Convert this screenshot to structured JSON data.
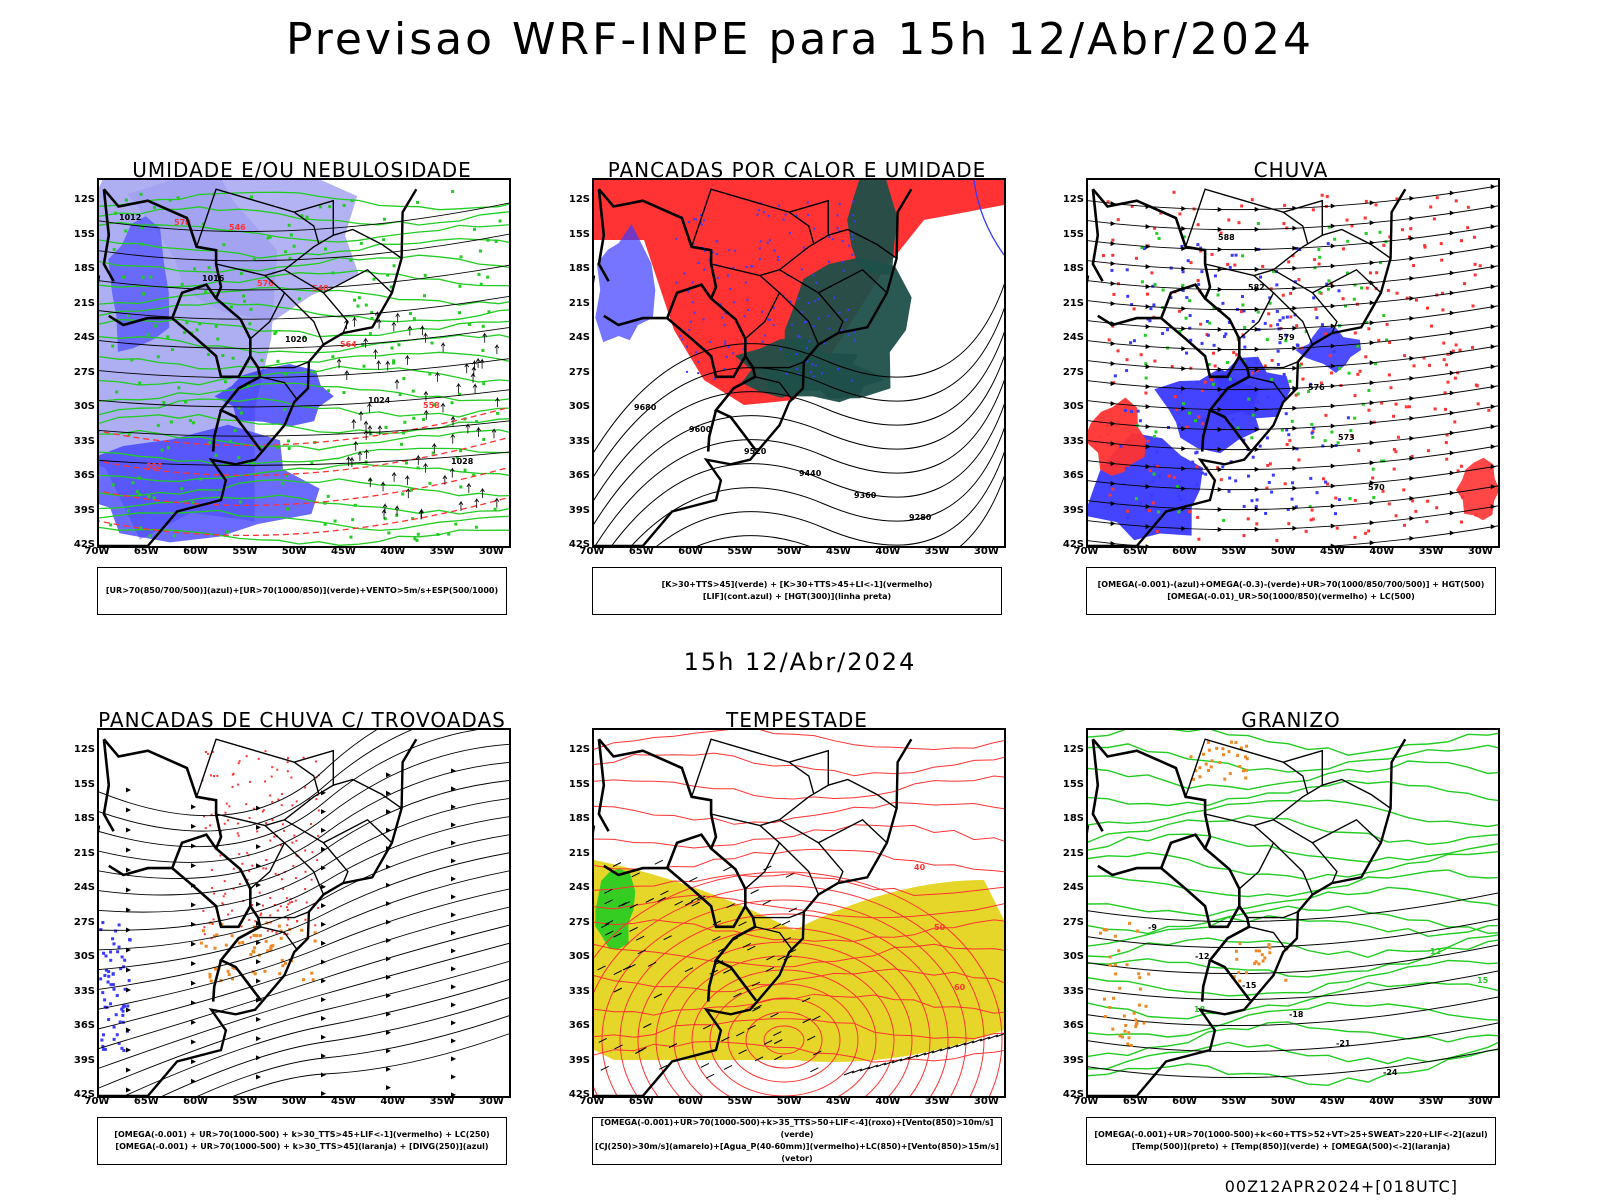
{
  "title": "Previsao WRF-INPE  para 15h 12/Abr/2024",
  "subtitle": "15h 12/Abr/2024",
  "footer": "00Z12APR2024+[018UTC]",
  "axes": {
    "lat_labels": [
      "12S",
      "15S",
      "18S",
      "21S",
      "24S",
      "27S",
      "30S",
      "33S",
      "36S",
      "39S",
      "42S"
    ],
    "lon_labels": [
      "70W",
      "65W",
      "60W",
      "55W",
      "50W",
      "45W",
      "40W",
      "35W",
      "30W"
    ]
  },
  "colors": {
    "blue": "#3a3aff",
    "light_blue": "#a0a0f0",
    "green": "#22cc22",
    "red": "#ff3333",
    "dark_teal": "#1f4f4a",
    "orange": "#ee8822",
    "yellow": "#e6d62a"
  },
  "panels": [
    {
      "id": "umidade",
      "title": "UMIDADE E/OU NEBULOSIDADE",
      "legend": [
        "[UR>70(850/700/500)](azul)+[UR>70(1000/850)](verde)+VENTO>5m/s+ESP(500/1000)"
      ],
      "contour_labels": [
        "1012",
        "1016",
        "1020",
        "1024",
        "1028",
        "570",
        "576",
        "564",
        "558",
        "552",
        "546",
        "540"
      ]
    },
    {
      "id": "pancadas_calor",
      "title": "PANCADAS POR CALOR E UMIDADE",
      "legend": [
        "[K>30+TTS>45](verde) + [K>30+TTS>45+LI<-1](vermelho)",
        "[LIF](cont.azul) + [HGT(300)](linha preta)"
      ],
      "contour_labels": [
        "9680",
        "9600",
        "9520",
        "9440",
        "9360",
        "9280"
      ]
    },
    {
      "id": "chuva",
      "title": "CHUVA",
      "legend": [
        "[OMEGA(-0.001)-(azul)+OMEGA(-0.3)-(verde)+UR>70(1000/850/700/500)] + HGT(500)",
        "[OMEGA(-0.01)_UR>50(1000/850)(vermelho) + LC(500)"
      ],
      "contour_labels": [
        "588",
        "582",
        "579",
        "576",
        "573",
        "570"
      ]
    },
    {
      "id": "trovoadas",
      "title": "PANCADAS DE CHUVA C/ TROVOADAS",
      "legend": [
        "[OMEGA(-0.001) + UR>70(1000-500) + k>30_TTS>45+LIF<-1](vermelho) + LC(250)",
        "[OMEGA(-0.001) + UR>70(1000-500) + k>30_TTS>45](laranja) + [DIVG(250)](azul)"
      ],
      "contour_labels": []
    },
    {
      "id": "tempestade",
      "title": "TEMPESTADE",
      "legend": [
        "[OMEGA(-0.001)+UR>70(1000-500)+k>35_TTS>50+LIF<-4](roxo)+[Vento(850)>10m/s](verde)",
        "[CJ(250)>30m/s](amarelo)+[Agua_P(40-60mm)](vermelho)+LC(850)+[Vento(850)>15m/s](vetor)"
      ],
      "contour_labels": [
        "40",
        "50",
        "60"
      ]
    },
    {
      "id": "granizo",
      "title": "GRANIZO",
      "legend": [
        "[OMEGA(-0.001)+UR>70(1000-500)+k<60+TTS>52+VT>25+SWEAT>220+LIF<-2](azul)",
        "[Temp(500)](preto) + [Temp(850)](verde) + [OMEGA(500)<-2](laranja)"
      ],
      "contour_labels": [
        "-9",
        "-12",
        "-15",
        "-18",
        "-21",
        "-24",
        "12",
        "15",
        "18"
      ]
    }
  ]
}
